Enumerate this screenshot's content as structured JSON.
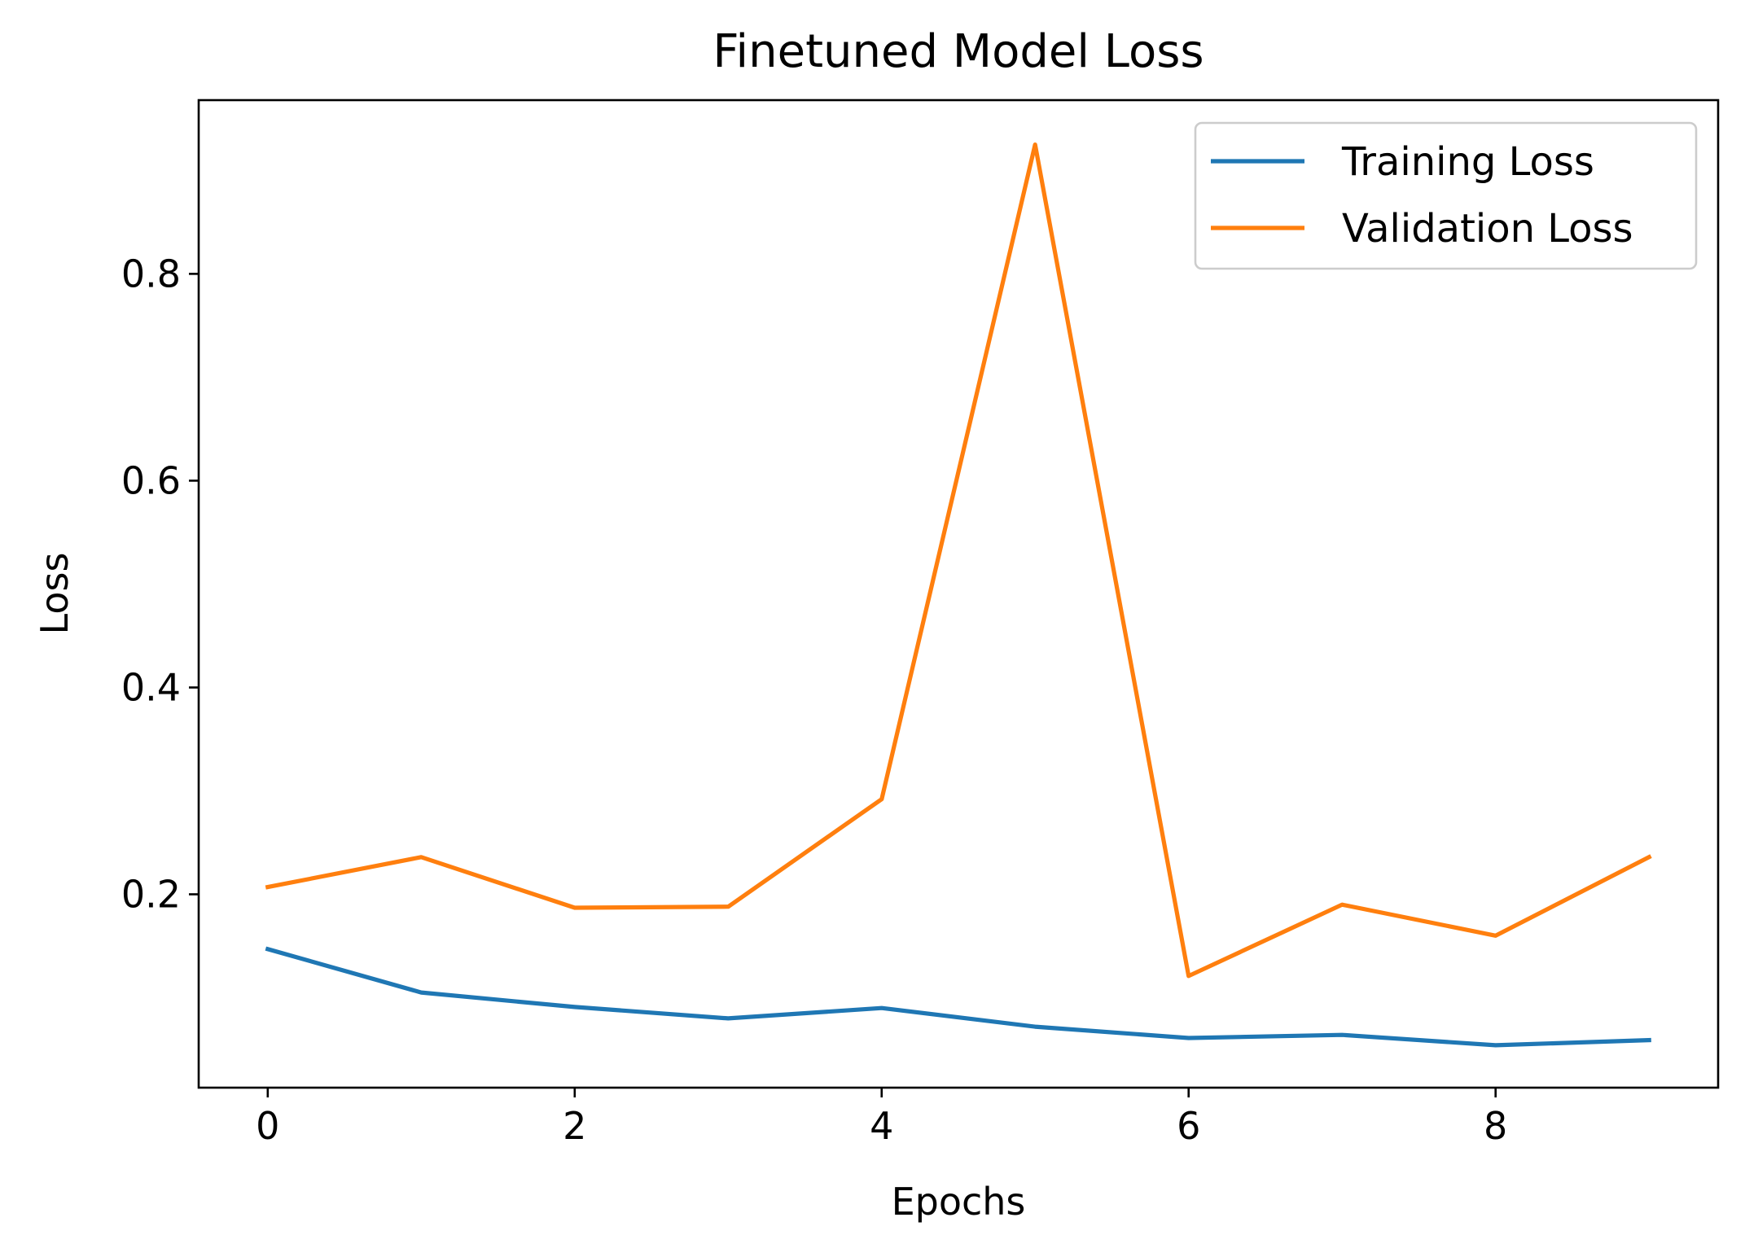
{
  "chart_data": {
    "type": "line",
    "title": "Finetuned Model Loss",
    "xlabel": "Epochs",
    "ylabel": "Loss",
    "x": [
      0,
      1,
      2,
      3,
      4,
      5,
      6,
      7,
      8,
      9
    ],
    "xlim": [
      -0.45,
      9.45
    ],
    "ylim": [
      0.013,
      0.968
    ],
    "xticks": [
      0,
      2,
      4,
      6,
      8
    ],
    "yticks": [
      0.2,
      0.4,
      0.6,
      0.8
    ],
    "xtick_labels": [
      "0",
      "2",
      "4",
      "6",
      "8"
    ],
    "ytick_labels": [
      "0.2",
      "0.4",
      "0.6",
      "0.8"
    ],
    "grid": false,
    "legend_position": "top-right",
    "series": [
      {
        "name": "Training Loss",
        "color": "#1f77b4",
        "values": [
          0.147,
          0.105,
          0.091,
          0.08,
          0.09,
          0.072,
          0.061,
          0.064,
          0.054,
          0.059
        ]
      },
      {
        "name": "Validation Loss",
        "color": "#ff7f0e",
        "values": [
          0.207,
          0.236,
          0.187,
          0.188,
          0.292,
          0.925,
          0.121,
          0.19,
          0.16,
          0.236
        ]
      }
    ]
  }
}
